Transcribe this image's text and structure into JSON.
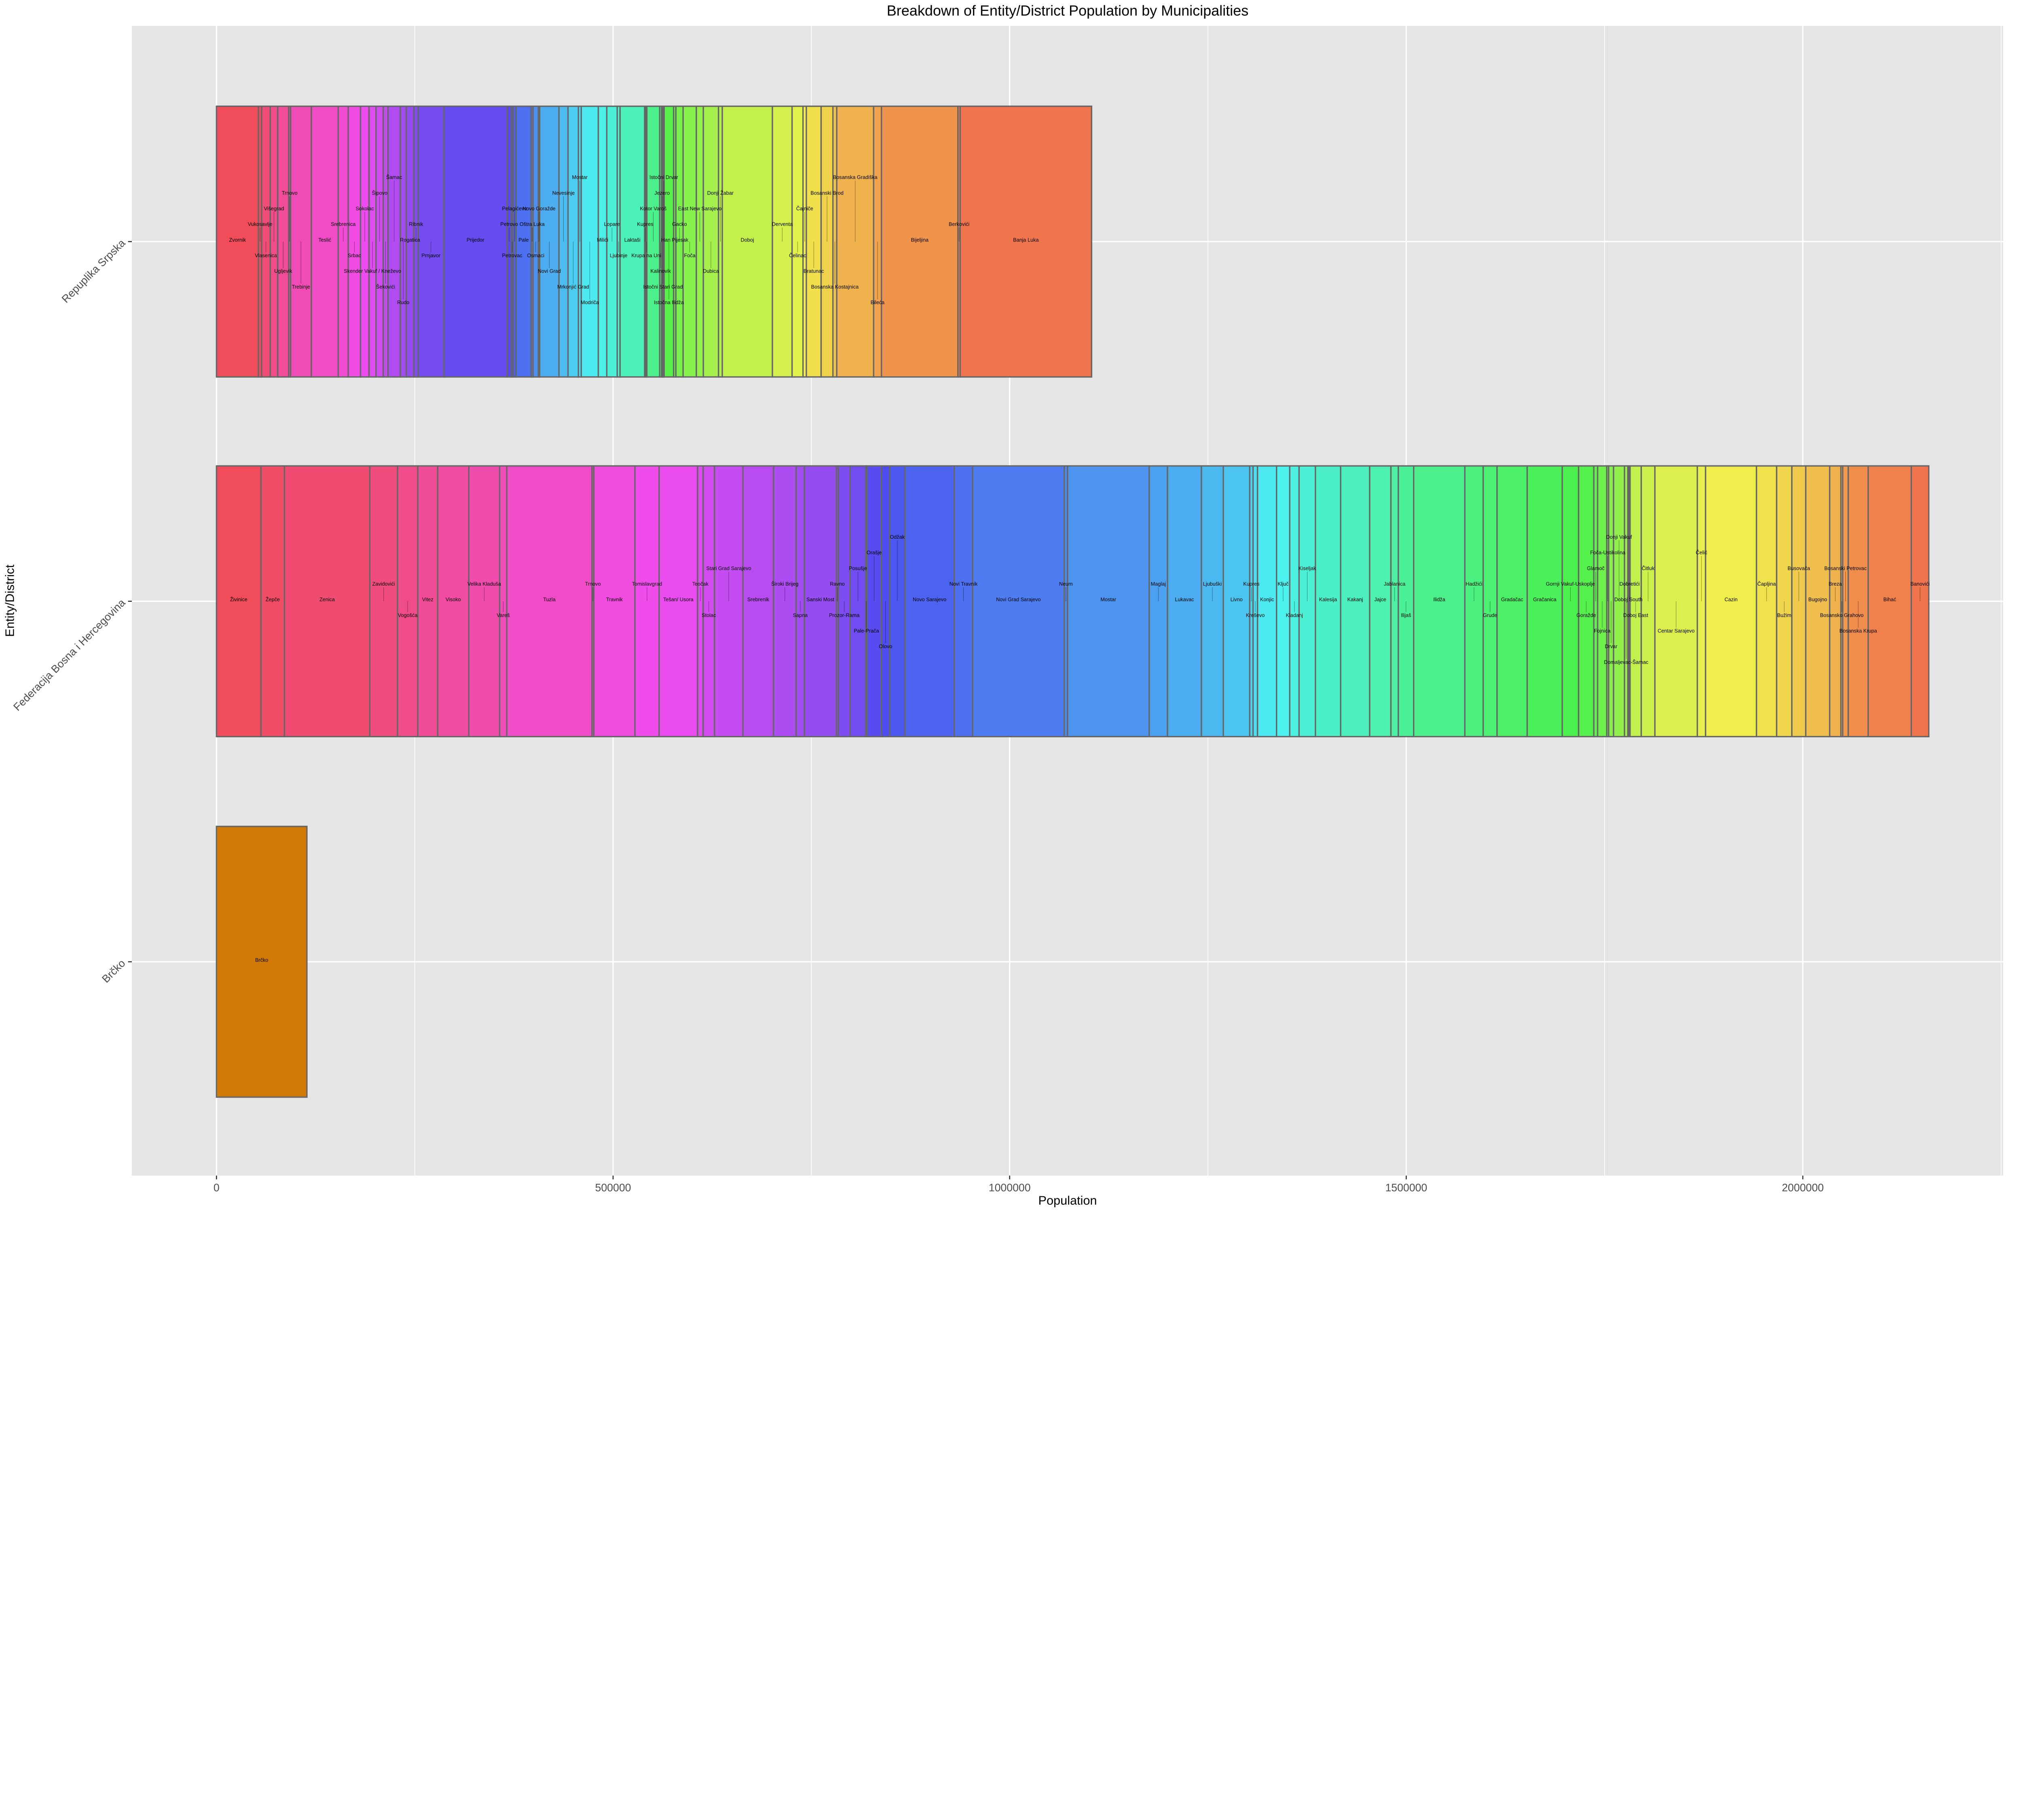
{
  "chart_data": {
    "type": "bar",
    "orientation": "horizontal-stacked",
    "title": "Breakdown of Entity/District Population by Municipalities",
    "xlabel": "Population",
    "ylabel": "Entity/District",
    "xlim": [
      -110000,
      2250000
    ],
    "x_ticks": [
      "0",
      "500000",
      "1000000",
      "1500000",
      "2000000"
    ],
    "x_tick_values": [
      0,
      500000,
      1000000,
      1500000,
      2000000
    ],
    "grid": true,
    "legend": "none",
    "categories": [
      "Repuplika Srpska",
      "Federacija Bosna i Hercegovina",
      "Brčko"
    ],
    "segment_outline_color": "#666666",
    "panel_background": "#E5E5E5",
    "series": [
      {
        "category": "Repuplika Srpska",
        "segments": [
          {
            "name": "Zvornik",
            "value": 52900
          },
          {
            "name": "Vukosavlje",
            "value": 4100
          },
          {
            "name": "Vlasenica",
            "value": 10700
          },
          {
            "name": "Višegrad",
            "value": 9500
          },
          {
            "name": "Ugljevik",
            "value": 13800
          },
          {
            "name": "Trnovo",
            "value": 2400
          },
          {
            "name": "Trebinje",
            "value": 26200
          },
          {
            "name": "Teslić",
            "value": 33900
          },
          {
            "name": "Srebrenica",
            "value": 12600
          },
          {
            "name": "Srbac",
            "value": 15500
          },
          {
            "name": "Sokolac",
            "value": 10700
          },
          {
            "name": "Skender Vakuf / Kneževo",
            "value": 8800
          },
          {
            "name": "Šipovo",
            "value": 9100
          },
          {
            "name": "Šekovići",
            "value": 6000
          },
          {
            "name": "Šamac",
            "value": 15500
          },
          {
            "name": "Rudo",
            "value": 7600
          },
          {
            "name": "Rogatica",
            "value": 9500
          },
          {
            "name": "Ribnik",
            "value": 5500
          },
          {
            "name": "Prnjavor",
            "value": 32200
          },
          {
            "name": "Prijedor",
            "value": 79900
          },
          {
            "name": "Petrovo",
            "value": 5200
          },
          {
            "name": "Petrovac",
            "value": 2400
          },
          {
            "name": "Pelagićevo",
            "value": 3600
          },
          {
            "name": "Pale",
            "value": 19100
          },
          {
            "name": "Oštra Luka",
            "value": 2400
          },
          {
            "name": "Osmaci",
            "value": 6700
          },
          {
            "name": "Novo Goražde",
            "value": 1700
          },
          {
            "name": "Novi Grad",
            "value": 24300
          },
          {
            "name": "Nevesinje",
            "value": 11400
          },
          {
            "name": "Mrkonjić Grad",
            "value": 13100
          },
          {
            "name": "Mostar",
            "value": 3600
          },
          {
            "name": "Modriča",
            "value": 21500
          },
          {
            "name": "Milići",
            "value": 10700
          },
          {
            "name": "Lopare",
            "value": 13100
          },
          {
            "name": "Ljubinje",
            "value": 3600
          },
          {
            "name": "Laktaši",
            "value": 31000
          },
          {
            "name": "Kupres",
            "value": 1400
          },
          {
            "name": "Krupa na Uni",
            "value": 1400
          },
          {
            "name": "Kotor Varoš",
            "value": 16200
          },
          {
            "name": "Kalinovik",
            "value": 2400
          },
          {
            "name": "Jezero",
            "value": 1200
          },
          {
            "name": "Istočni Stari Grad",
            "value": 1000
          },
          {
            "name": "Istočni Drvar",
            "value": 1000
          },
          {
            "name": "Istočna Ilidža",
            "value": 11900
          },
          {
            "name": "Han Pijesak",
            "value": 2900
          },
          {
            "name": "Gacko",
            "value": 9100
          },
          {
            "name": "Foča",
            "value": 16700
          },
          {
            "name": "East New Sarajevo",
            "value": 8800
          },
          {
            "name": "Dubica",
            "value": 19100
          },
          {
            "name": "Donji Žabar",
            "value": 4800
          },
          {
            "name": "Doboj",
            "value": 63200
          },
          {
            "name": "Derventa",
            "value": 24800
          },
          {
            "name": "Čelinac",
            "value": 13800
          },
          {
            "name": "Čajniče",
            "value": 4200
          },
          {
            "name": "Bratunac",
            "value": 18600
          },
          {
            "name": "Bosanski Brod",
            "value": 14900
          },
          {
            "name": "Bosanska Kostajnica",
            "value": 4800
          },
          {
            "name": "Bosanska Gradiška",
            "value": 46500
          },
          {
            "name": "Bileća",
            "value": 9900
          },
          {
            "name": "Bijeljina",
            "value": 96400
          },
          {
            "name": "Berkovići",
            "value": 2800
          },
          {
            "name": "Banja Luka",
            "value": 165700
          }
        ]
      },
      {
        "category": "Federacija Bosna i Hercegovina",
        "segments": [
          {
            "name": "Živinice",
            "value": 56100
          },
          {
            "name": "Žepče",
            "value": 29600
          },
          {
            "name": "Zenica",
            "value": 107600
          },
          {
            "name": "Zavidovići",
            "value": 34900
          },
          {
            "name": "Vogošća",
            "value": 25600
          },
          {
            "name": "Vitez",
            "value": 25100
          },
          {
            "name": "Visoko",
            "value": 39200
          },
          {
            "name": "Velika Kladuša",
            "value": 38900
          },
          {
            "name": "Vareš",
            "value": 9000
          },
          {
            "name": "Tuzla",
            "value": 107400
          },
          {
            "name": "Trnovo",
            "value": 2300
          },
          {
            "name": "Travnik",
            "value": 51900
          },
          {
            "name": "Tomislavgrad",
            "value": 30400
          },
          {
            "name": "Tešan/ Usora",
            "value": 48500
          },
          {
            "name": "Teočak",
            "value": 7000
          },
          {
            "name": "Stolac",
            "value": 14400
          },
          {
            "name": "Stari Grad Sarajevo",
            "value": 35800
          },
          {
            "name": "Srebrenik",
            "value": 38600
          },
          {
            "name": "Široki Brijeg",
            "value": 28500
          },
          {
            "name": "Sapna",
            "value": 10400
          },
          {
            "name": "Sanski Most",
            "value": 40300
          },
          {
            "name": "Ravno",
            "value": 2500
          },
          {
            "name": "Prozor-Rama",
            "value": 14900
          },
          {
            "name": "Posušje",
            "value": 19700
          },
          {
            "name": "Pale-Prača",
            "value": 1400
          },
          {
            "name": "Orašje",
            "value": 18300
          },
          {
            "name": "Olovo",
            "value": 10400
          },
          {
            "name": "Odžak",
            "value": 19200
          },
          {
            "name": "Novo Sarajevo",
            "value": 62300
          },
          {
            "name": "Novi Travnik",
            "value": 23100
          },
          {
            "name": "Novi Grad Sarajevo",
            "value": 115500
          },
          {
            "name": "Neum",
            "value": 4200
          },
          {
            "name": "Mostar",
            "value": 102900
          },
          {
            "name": "Maglaj",
            "value": 23100
          },
          {
            "name": "Lukavac",
            "value": 42800
          },
          {
            "name": "Ljubuški",
            "value": 27600
          },
          {
            "name": "Livno",
            "value": 33300
          },
          {
            "name": "Kupres",
            "value": 4200
          },
          {
            "name": "Kreševo",
            "value": 5600
          },
          {
            "name": "Konjic",
            "value": 24000
          },
          {
            "name": "Ključ",
            "value": 16600
          },
          {
            "name": "Kladanj",
            "value": 11800
          },
          {
            "name": "Kiseljak",
            "value": 20600
          },
          {
            "name": "Kalesija",
            "value": 31800
          },
          {
            "name": "Kakanj",
            "value": 36600
          },
          {
            "name": "Jajce",
            "value": 26800
          },
          {
            "name": "Jablanica",
            "value": 9300
          },
          {
            "name": "Ilijaš",
            "value": 19400
          },
          {
            "name": "Ilidža",
            "value": 64500
          },
          {
            "name": "Hadžići",
            "value": 23100
          },
          {
            "name": "Grude",
            "value": 17500
          },
          {
            "name": "Gradačac",
            "value": 38000
          },
          {
            "name": "Gračanica",
            "value": 44200
          },
          {
            "name": "Gornji Vakuf-Uskoplje",
            "value": 20600
          },
          {
            "name": "Goražde",
            "value": 19200
          },
          {
            "name": "Glamoč",
            "value": 4800
          },
          {
            "name": "Fojnica",
            "value": 11600
          },
          {
            "name": "Foča-Ustikolina",
            "value": 2300
          },
          {
            "name": "Drvar",
            "value": 6200
          },
          {
            "name": "Donji Vakuf",
            "value": 13800
          },
          {
            "name": "Domaljevac-Šamac",
            "value": 4200
          },
          {
            "name": "Doboj South",
            "value": 1400
          },
          {
            "name": "Dobretići",
            "value": 1400
          },
          {
            "name": "Doboj East",
            "value": 14100
          },
          {
            "name": "Čitluk",
            "value": 17200
          },
          {
            "name": "Centar Sarajevo",
            "value": 53500
          },
          {
            "name": "Čelić",
            "value": 10400
          },
          {
            "name": "Cazin",
            "value": 64200
          },
          {
            "name": "Čapljina",
            "value": 25400
          },
          {
            "name": "Bužim",
            "value": 19200
          },
          {
            "name": "Busovača",
            "value": 17500
          },
          {
            "name": "Bugojno",
            "value": 30200
          },
          {
            "name": "Breza",
            "value": 14100
          },
          {
            "name": "Bosansko Grahovo",
            "value": 2300
          },
          {
            "name": "Bosanski Petrovac",
            "value": 7000
          },
          {
            "name": "Bosanska Krupa",
            "value": 25100
          },
          {
            "name": "Bihać",
            "value": 54400
          },
          {
            "name": "Banovići",
            "value": 22000
          }
        ]
      },
      {
        "category": "Brčko",
        "segments": [
          {
            "name": "Brčko",
            "value": 114000,
            "color": "#D07A05"
          }
        ]
      }
    ]
  }
}
